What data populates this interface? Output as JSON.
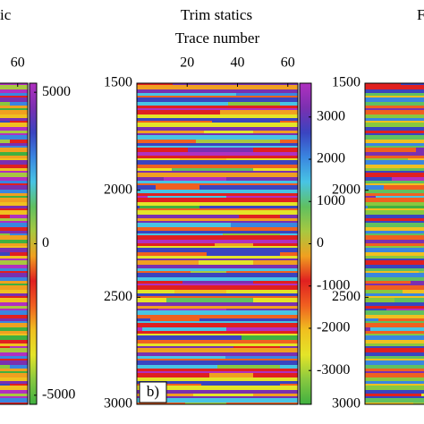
{
  "chart_data": [
    {
      "type": "seismic",
      "title": "ic",
      "xlim": [
        0,
        64
      ],
      "xticks": [
        60
      ],
      "ylim": [
        1500,
        3000
      ],
      "clim": [
        -5300,
        5300
      ],
      "cticks": [
        5000,
        0,
        -5000
      ]
    },
    {
      "type": "seismic",
      "title": "Trim statics",
      "xlabel": "Trace number",
      "xlim": [
        0,
        64
      ],
      "xticks": [
        20,
        40,
        60
      ],
      "ylim": [
        1500,
        3000
      ],
      "yticks": [
        1500,
        2000,
        2500,
        3000
      ],
      "clim": [
        -3800,
        3800
      ],
      "cticks": [
        3000,
        2000,
        1000,
        0,
        -1000,
        -2000,
        -3000
      ],
      "panel_label": "b)"
    },
    {
      "type": "seismic",
      "title": "F",
      "ylim": [
        1500,
        3000
      ],
      "yticks": [
        1500,
        2000,
        2500,
        3000
      ]
    }
  ],
  "colormap": [
    "#b030c0",
    "#7a30b0",
    "#3a44c0",
    "#3a86e0",
    "#48c4e4",
    "#60c060",
    "#a8c840",
    "#f0a020",
    "#e02020",
    "#f06020",
    "#f0c020",
    "#e4e428",
    "#88c840",
    "#40b040"
  ]
}
